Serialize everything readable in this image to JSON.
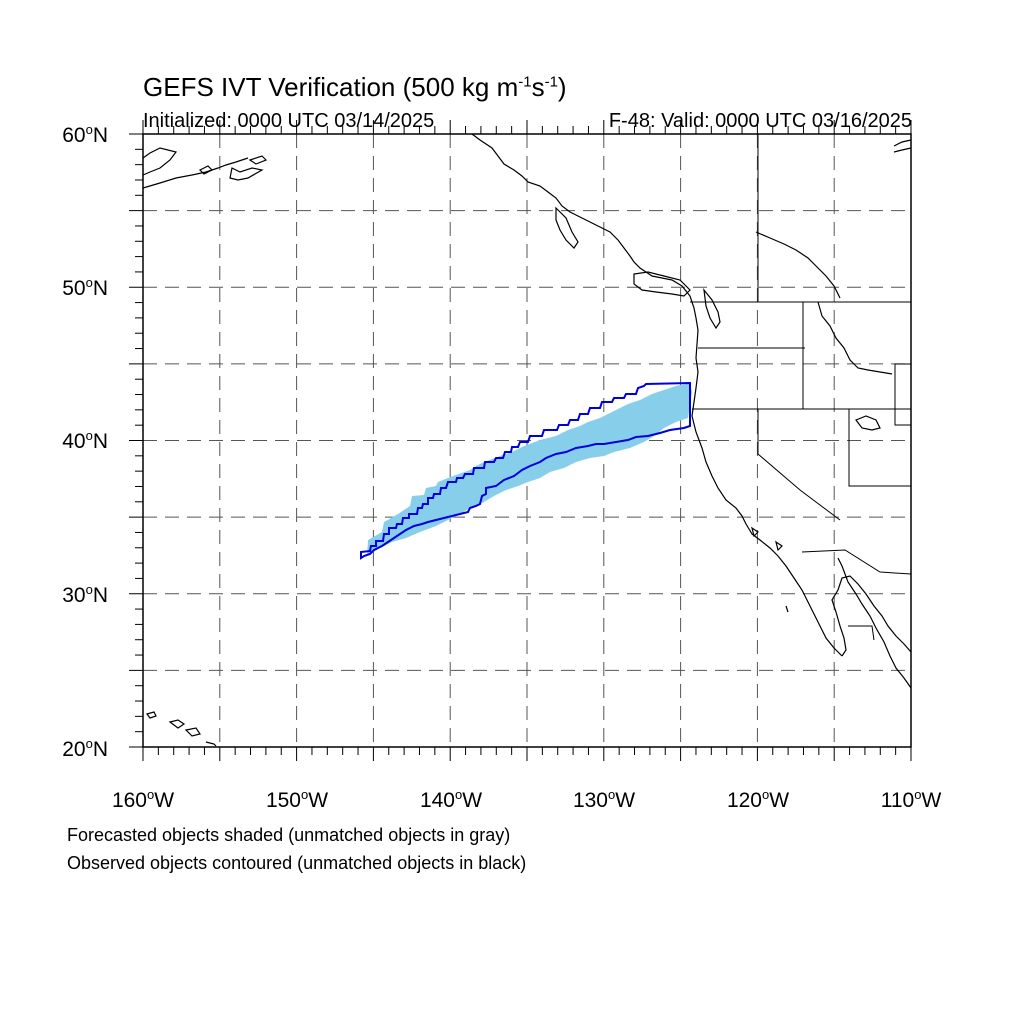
{
  "title": {
    "text": "GEFS IVT Verification (500 kg m",
    "sup1": "-1",
    "mid": "s",
    "sup2": "-1",
    "end": ")"
  },
  "initialized": "Initialized: 0000 UTC 03/14/2025",
  "valid": "F-48: Valid: 0000 UTC 03/16/2025",
  "axes": {
    "lat_labels": [
      {
        "num": "60",
        "unit": "N"
      },
      {
        "num": "50",
        "unit": "N"
      },
      {
        "num": "40",
        "unit": "N"
      },
      {
        "num": "30",
        "unit": "N"
      },
      {
        "num": "20",
        "unit": "N"
      }
    ],
    "lon_labels": [
      {
        "num": "160",
        "unit": "W"
      },
      {
        "num": "150",
        "unit": "W"
      },
      {
        "num": "140",
        "unit": "W"
      },
      {
        "num": "130",
        "unit": "W"
      },
      {
        "num": "120",
        "unit": "W"
      },
      {
        "num": "110",
        "unit": "W"
      }
    ],
    "lat_range": [
      20,
      60
    ],
    "lon_range": [
      -160,
      -110
    ]
  },
  "notes": {
    "line1": "Forecasted objects shaded (unmatched objects in gray)",
    "line2": "Observed objects contoured (unmatched objects in black)"
  },
  "colors": {
    "forecast_fill": "#87ceeb",
    "observed_contour": "#0000dd",
    "coast": "#000000",
    "grid": "#555555"
  }
}
